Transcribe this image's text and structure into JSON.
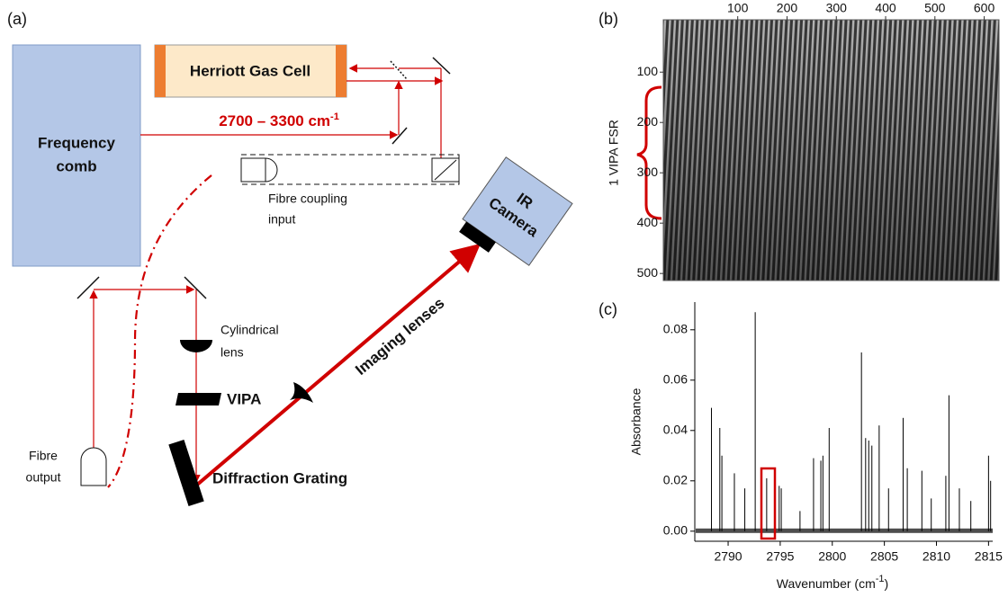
{
  "panel_a": {
    "label": "(a)",
    "frequency_comb": [
      "Frequency",
      "comb"
    ],
    "gas_cell": "Herriott Gas Cell",
    "range": {
      "text": "2700 – 3300 cm",
      "sup": "-1"
    },
    "fibre_coupling": [
      "Fibre coupling",
      "input"
    ],
    "camera": [
      "IR",
      "Camera"
    ],
    "imaging_lenses": "Imaging lenses",
    "cylindrical_lens": [
      "Cylindrical",
      "lens"
    ],
    "vipa": "VIPA",
    "grating": "Diffraction Grating",
    "fibre_output": [
      "Fibre",
      "output"
    ]
  },
  "panel_b": {
    "label": "(b)",
    "annotation": "1 VIPA FSR",
    "xlim": [
      -51,
      630
    ],
    "xticks": [
      100,
      200,
      300,
      400,
      500,
      600
    ],
    "ylim": [
      -4,
      514
    ],
    "yticks": [
      100,
      200,
      300,
      400,
      500
    ]
  },
  "chart_data": {
    "type": "stem",
    "label": "(c)",
    "color": "#000000",
    "x": [
      2788.4,
      2789.2,
      2789.4,
      2790.6,
      2791.6,
      2792.6,
      2793.7,
      2794.9,
      2795.1,
      2796.9,
      2798.2,
      2798.9,
      2799.1,
      2799.7,
      2802.8,
      2803.2,
      2803.5,
      2803.8,
      2804.5,
      2805.4,
      2806.8,
      2807.2,
      2808.6,
      2809.5,
      2810.9,
      2811.2,
      2812.2,
      2813.3,
      2815.0,
      2815.2
    ],
    "values": [
      0.049,
      0.041,
      0.03,
      0.023,
      0.017,
      0.087,
      0.021,
      0.018,
      0.017,
      0.008,
      0.029,
      0.028,
      0.03,
      0.041,
      0.071,
      0.037,
      0.036,
      0.034,
      0.042,
      0.017,
      0.045,
      0.025,
      0.024,
      0.013,
      0.022,
      0.054,
      0.017,
      0.012,
      0.03,
      0.02
    ],
    "xlim": [
      2786.8,
      2815.4
    ],
    "xticks": [
      2790,
      2795,
      2800,
      2805,
      2810,
      2815
    ],
    "ylim": [
      -0.004,
      0.091
    ],
    "yticks": [
      {
        "value": 0,
        "label": "0.00"
      },
      {
        "value": 0.02,
        "label": "0.02"
      },
      {
        "value": 0.04,
        "label": "0.04"
      },
      {
        "value": 0.06,
        "label": "0.06"
      },
      {
        "value": 0.08,
        "label": "0.08"
      }
    ],
    "xlabel": {
      "text": "Wavenumber (cm",
      "sup": "-1",
      "end": ")"
    },
    "ylabel": "Absorbance"
  }
}
